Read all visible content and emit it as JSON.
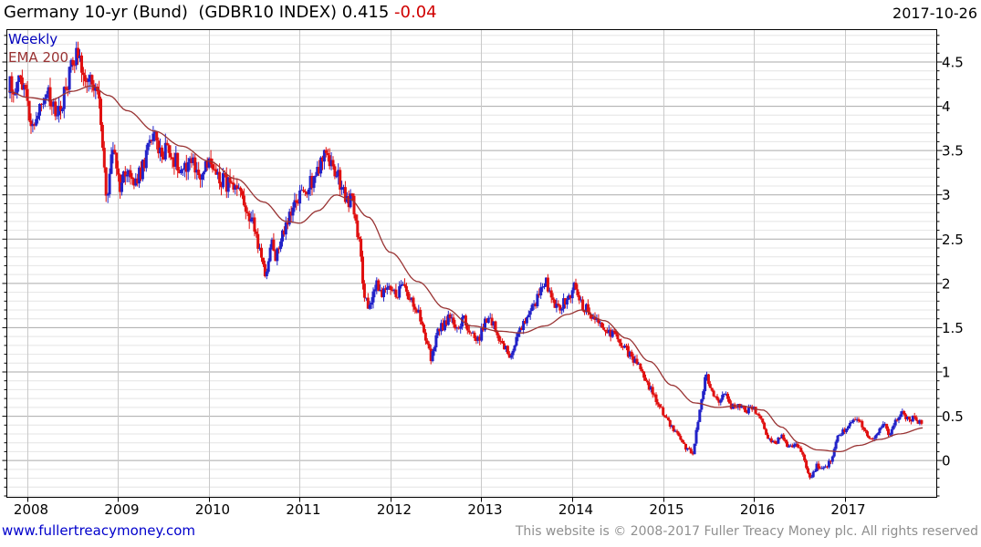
{
  "header": {
    "title_main": "Germany 10-yr (Bund)  (GDBR10 INDEX) 0.415",
    "title_change": " -0.04",
    "date": "2017-10-26"
  },
  "legend": {
    "series_label": "Weekly",
    "ema_label": "EMA 200"
  },
  "footer": {
    "website": "www.fullertreacymoney.com",
    "copyright": "This website is © 2008-2017 Fuller Treacy Money plc. All rights reserved"
  },
  "colors": {
    "up_candle": "#2222c8",
    "down_candle": "#e01010",
    "ema": "#993333",
    "grid_major": "#aaaaaa",
    "grid_minor": "#e4e4e4",
    "grid_vertical": "#c9c9c9",
    "axis": "#000000",
    "legend_weekly": "#0000bb",
    "ema_label": "#993333",
    "link": "#0000cc",
    "copyright_gray": "#8f8f8f",
    "change_red": "#d00000"
  },
  "chart_data": {
    "type": "candlestick",
    "title": "Germany 10-yr (Bund) (GDBR10 INDEX)",
    "frequency": "weekly",
    "last_price": 0.415,
    "change": -0.04,
    "date": "2017-10-26",
    "xlim": [
      2007.774,
      2018.015
    ],
    "ylim": [
      -0.4155,
      4.8655
    ],
    "x_ticks": [
      2008,
      2009,
      2010,
      2011,
      2012,
      2013,
      2014,
      2015,
      2016,
      2017
    ],
    "y_ticks": [
      {
        "v": 4.5,
        "label": "4.5"
      },
      {
        "v": 4.0,
        "label": "4"
      },
      {
        "v": 3.5,
        "label": "3.5"
      },
      {
        "v": 3.0,
        "label": "3"
      },
      {
        "v": 2.5,
        "label": "2.5"
      },
      {
        "v": 2.0,
        "label": "2"
      },
      {
        "v": 1.5,
        "label": "1.5"
      },
      {
        "v": 1.0,
        "label": "1"
      },
      {
        "v": 0.5,
        "label": "0.5"
      },
      {
        "v": 0.0,
        "label": "0"
      }
    ],
    "grid": {
      "minor_step": 0.1,
      "major_step": 0.5,
      "vertical": "yearly"
    },
    "data_start": 2007.79,
    "data_end": 2017.84,
    "series": [
      {
        "name": "Weekly",
        "type": "candlestick",
        "anchors": [
          [
            2007.79,
            4.27
          ],
          [
            2007.87,
            4.18
          ],
          [
            2007.93,
            4.3
          ],
          [
            2008.0,
            4.08
          ],
          [
            2008.05,
            3.78
          ],
          [
            2008.12,
            3.95
          ],
          [
            2008.2,
            4.18
          ],
          [
            2008.3,
            3.92
          ],
          [
            2008.4,
            4.1
          ],
          [
            2008.54,
            4.67
          ],
          [
            2008.6,
            4.45
          ],
          [
            2008.66,
            4.35
          ],
          [
            2008.72,
            4.2
          ],
          [
            2008.78,
            4.1
          ],
          [
            2008.83,
            3.55
          ],
          [
            2008.87,
            2.95
          ],
          [
            2008.95,
            3.55
          ],
          [
            2009.02,
            3.1
          ],
          [
            2009.1,
            3.3
          ],
          [
            2009.18,
            3.1
          ],
          [
            2009.27,
            3.3
          ],
          [
            2009.38,
            3.72
          ],
          [
            2009.46,
            3.45
          ],
          [
            2009.54,
            3.55
          ],
          [
            2009.62,
            3.4
          ],
          [
            2009.7,
            3.3
          ],
          [
            2009.8,
            3.42
          ],
          [
            2009.9,
            3.2
          ],
          [
            2010.0,
            3.35
          ],
          [
            2010.12,
            3.2
          ],
          [
            2010.22,
            3.1
          ],
          [
            2010.32,
            3.0
          ],
          [
            2010.42,
            2.85
          ],
          [
            2010.52,
            2.55
          ],
          [
            2010.62,
            2.1
          ],
          [
            2010.68,
            2.45
          ],
          [
            2010.74,
            2.3
          ],
          [
            2010.82,
            2.6
          ],
          [
            2010.9,
            2.75
          ],
          [
            2010.98,
            2.95
          ],
          [
            2011.06,
            3.05
          ],
          [
            2011.14,
            3.18
          ],
          [
            2011.21,
            3.32
          ],
          [
            2011.28,
            3.48
          ],
          [
            2011.35,
            3.33
          ],
          [
            2011.42,
            3.2
          ],
          [
            2011.5,
            3.0
          ],
          [
            2011.58,
            2.9
          ],
          [
            2011.65,
            2.5
          ],
          [
            2011.71,
            1.9
          ],
          [
            2011.76,
            1.67
          ],
          [
            2011.83,
            2.0
          ],
          [
            2011.9,
            1.88
          ],
          [
            2011.98,
            1.95
          ],
          [
            2012.06,
            1.85
          ],
          [
            2012.13,
            1.98
          ],
          [
            2012.2,
            1.8
          ],
          [
            2012.28,
            1.75
          ],
          [
            2012.36,
            1.52
          ],
          [
            2012.44,
            1.15
          ],
          [
            2012.52,
            1.45
          ],
          [
            2012.6,
            1.55
          ],
          [
            2012.66,
            1.62
          ],
          [
            2012.73,
            1.45
          ],
          [
            2012.8,
            1.6
          ],
          [
            2012.88,
            1.42
          ],
          [
            2012.96,
            1.35
          ],
          [
            2013.04,
            1.55
          ],
          [
            2013.11,
            1.6
          ],
          [
            2013.18,
            1.42
          ],
          [
            2013.25,
            1.28
          ],
          [
            2013.32,
            1.16
          ],
          [
            2013.42,
            1.45
          ],
          [
            2013.5,
            1.6
          ],
          [
            2013.58,
            1.75
          ],
          [
            2013.65,
            1.9
          ],
          [
            2013.71,
            2.05
          ],
          [
            2013.78,
            1.82
          ],
          [
            2013.85,
            1.7
          ],
          [
            2013.93,
            1.82
          ],
          [
            2014.02,
            1.95
          ],
          [
            2014.12,
            1.75
          ],
          [
            2014.22,
            1.62
          ],
          [
            2014.32,
            1.55
          ],
          [
            2014.44,
            1.42
          ],
          [
            2014.56,
            1.3
          ],
          [
            2014.68,
            1.12
          ],
          [
            2014.8,
            0.95
          ],
          [
            2014.92,
            0.68
          ],
          [
            2015.02,
            0.5
          ],
          [
            2015.12,
            0.35
          ],
          [
            2015.22,
            0.18
          ],
          [
            2015.33,
            0.07
          ],
          [
            2015.4,
            0.55
          ],
          [
            2015.47,
            0.98
          ],
          [
            2015.54,
            0.8
          ],
          [
            2015.6,
            0.65
          ],
          [
            2015.68,
            0.76
          ],
          [
            2015.76,
            0.6
          ],
          [
            2015.84,
            0.63
          ],
          [
            2015.92,
            0.55
          ],
          [
            2016.0,
            0.6
          ],
          [
            2016.08,
            0.45
          ],
          [
            2016.16,
            0.25
          ],
          [
            2016.24,
            0.18
          ],
          [
            2016.3,
            0.28
          ],
          [
            2016.38,
            0.14
          ],
          [
            2016.46,
            0.2
          ],
          [
            2016.53,
            0.1
          ],
          [
            2016.58,
            -0.08
          ],
          [
            2016.62,
            -0.19
          ],
          [
            2016.7,
            -0.05
          ],
          [
            2016.78,
            -0.1
          ],
          [
            2016.85,
            0.0
          ],
          [
            2016.92,
            0.28
          ],
          [
            2017.0,
            0.35
          ],
          [
            2017.08,
            0.44
          ],
          [
            2017.16,
            0.45
          ],
          [
            2017.24,
            0.3
          ],
          [
            2017.3,
            0.22
          ],
          [
            2017.38,
            0.35
          ],
          [
            2017.44,
            0.42
          ],
          [
            2017.5,
            0.27
          ],
          [
            2017.56,
            0.45
          ],
          [
            2017.63,
            0.58
          ],
          [
            2017.7,
            0.45
          ],
          [
            2017.76,
            0.48
          ],
          [
            2017.84,
            0.415
          ]
        ]
      },
      {
        "name": "EMA 200",
        "type": "line",
        "anchors": [
          [
            2007.79,
            4.17
          ],
          [
            2008.0,
            4.1
          ],
          [
            2008.25,
            4.07
          ],
          [
            2008.5,
            4.17
          ],
          [
            2008.7,
            4.23
          ],
          [
            2008.9,
            4.12
          ],
          [
            2009.1,
            3.95
          ],
          [
            2009.4,
            3.72
          ],
          [
            2009.7,
            3.55
          ],
          [
            2010.0,
            3.38
          ],
          [
            2010.3,
            3.18
          ],
          [
            2010.6,
            2.92
          ],
          [
            2010.85,
            2.7
          ],
          [
            2011.0,
            2.68
          ],
          [
            2011.2,
            2.82
          ],
          [
            2011.4,
            3.0
          ],
          [
            2011.55,
            2.95
          ],
          [
            2011.75,
            2.75
          ],
          [
            2012.0,
            2.35
          ],
          [
            2012.3,
            2.02
          ],
          [
            2012.6,
            1.72
          ],
          [
            2012.9,
            1.52
          ],
          [
            2013.2,
            1.46
          ],
          [
            2013.45,
            1.44
          ],
          [
            2013.7,
            1.52
          ],
          [
            2013.95,
            1.65
          ],
          [
            2014.1,
            1.7
          ],
          [
            2014.35,
            1.58
          ],
          [
            2014.6,
            1.38
          ],
          [
            2014.85,
            1.12
          ],
          [
            2015.1,
            0.85
          ],
          [
            2015.35,
            0.65
          ],
          [
            2015.6,
            0.6
          ],
          [
            2015.85,
            0.62
          ],
          [
            2016.1,
            0.57
          ],
          [
            2016.3,
            0.38
          ],
          [
            2016.5,
            0.2
          ],
          [
            2016.7,
            0.12
          ],
          [
            2016.95,
            0.1
          ],
          [
            2017.15,
            0.17
          ],
          [
            2017.4,
            0.24
          ],
          [
            2017.6,
            0.3
          ],
          [
            2017.88,
            0.37
          ]
        ]
      }
    ]
  }
}
